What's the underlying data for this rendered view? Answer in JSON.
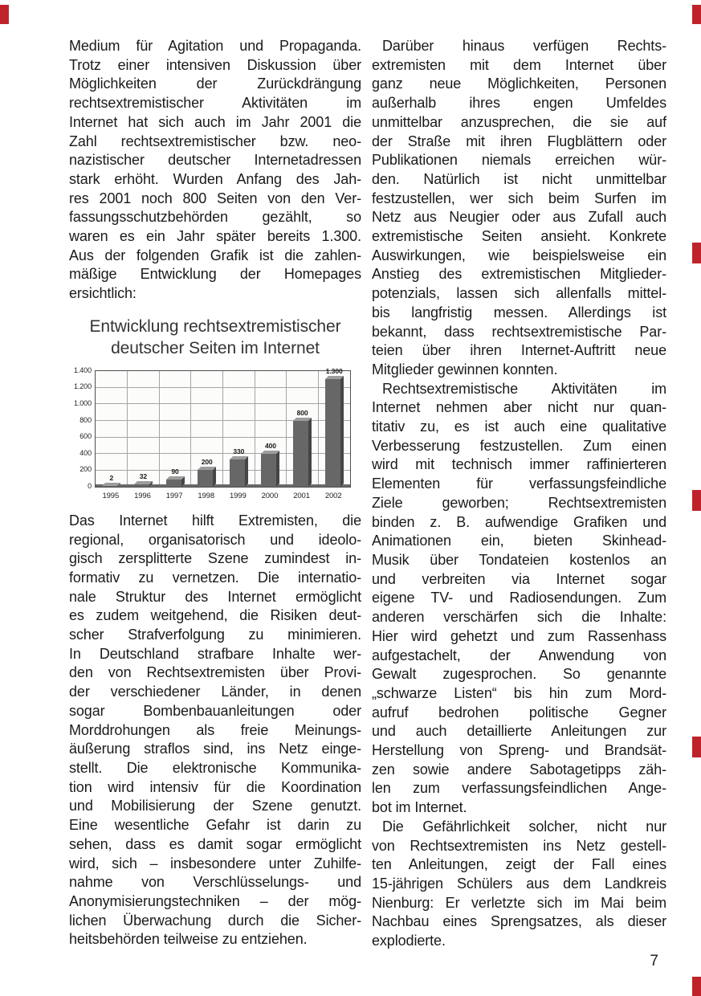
{
  "page": {
    "number": "7"
  },
  "colors": {
    "edge_mark": "#bf232a",
    "text": "#1a1a1a"
  },
  "columns": {
    "left": {
      "para1_lines": [
        "Medium für Agitation und Propaganda.",
        "Trotz einer intensiven Diskussion über",
        "Möglichkeiten der Zurückdrängung",
        "rechtsextremistischer Aktivitäten im",
        "Internet hat sich auch im Jahr 2001 die",
        "Zahl rechtsextremistischer bzw. neo-",
        "nazistischer deutscher Internetadressen",
        "stark erhöht. Wurden Anfang des Jah-",
        "res 2001 noch 800 Seiten von den Ver-",
        "fassungsschutzbehörden gezählt, so",
        "waren es ein Jahr später bereits 1.300.",
        "Aus der folgenden Grafik ist die zahlen-",
        "mäßige Entwicklung der Homepages",
        "ersichtlich:"
      ],
      "para2_lines": [
        "Das Internet hilft Extremisten, die",
        "regional, organisatorisch und ideolo-",
        "gisch zersplitterte Szene zumindest in-",
        "formativ zu vernetzen. Die internatio-",
        "nale Struktur des Internet ermöglicht",
        "es zudem weitgehend, die Risiken deut-",
        "scher Strafverfolgung zu minimieren.",
        "In Deutschland strafbare Inhalte wer-",
        "den von Rechtsextremisten über Provi-",
        "der verschiedener Länder, in denen",
        "sogar Bombenbauanleitungen oder",
        "Morddrohungen als freie Meinungs-",
        "äußerung straflos sind, ins Netz einge-",
        "stellt. Die elektronische Kommunika-",
        "tion wird intensiv für die Koordination",
        "und Mobilisierung der Szene genutzt.",
        "Eine wesentliche Gefahr ist darin zu",
        "sehen, dass es damit sogar ermöglicht",
        "wird, sich – insbesondere unter Zuhilfe-",
        "nahme von Verschlüsselungs- und",
        "Anonymisierungstechniken – der mög-",
        "lichen Überwachung durch die Sicher-",
        "heitsbehörden teilweise zu entziehen."
      ]
    },
    "right": {
      "para1_lines": [
        "Darüber hinaus verfügen Rechts-",
        "extremisten mit dem Internet über",
        "ganz neue Möglichkeiten, Personen",
        "außerhalb ihres engen Umfeldes",
        "unmittelbar anzusprechen, die sie auf",
        "der Straße mit ihren Flugblättern oder",
        "Publikationen niemals erreichen wür-",
        "den. Natürlich ist nicht unmittelbar",
        "festzustellen, wer sich beim Surfen im",
        "Netz aus Neugier oder aus Zufall auch",
        "extremistische Seiten ansieht. Konkrete",
        "Auswirkungen, wie beispielsweise ein",
        "Anstieg des extremistischen Mitglieder-",
        "potenzials, lassen sich allenfalls mittel-",
        "bis langfristig messen. Allerdings ist",
        "bekannt, dass rechtsextremistische Par-",
        "teien über ihren Internet-Auftritt neue",
        "Mitglieder gewinnen konnten."
      ],
      "para2_lines": [
        "Rechtsextremistische Aktivitäten im",
        "Internet nehmen aber nicht nur quan-",
        "titativ zu, es ist auch eine qualitative",
        "Verbesserung festzustellen. Zum einen",
        "wird mit technisch immer raffinierteren",
        "Elementen für verfassungsfeindliche",
        "Ziele geworben; Rechtsextremisten",
        "binden z. B. aufwendige Grafiken und",
        "Animationen ein, bieten Skinhead-",
        "Musik über Tondateien kostenlos an",
        "und verbreiten via Internet sogar",
        "eigene TV- und Radiosendungen. Zum",
        "anderen verschärfen sich die Inhalte:",
        "Hier wird gehetzt und zum Rassenhass",
        "aufgestachelt, der Anwendung von",
        "Gewalt zugesprochen. So genannte",
        "„schwarze Listen“ bis hin zum Mord-",
        "aufruf bedrohen politische Gegner",
        "und auch detaillierte Anleitungen zur",
        "Herstellung von Spreng- und Brandsät-",
        "zen sowie andere Sabotagetipps zäh-",
        "len zum verfassungsfeindlichen Ange-",
        "bot im Internet."
      ],
      "para3_lines": [
        "Die Gefährlichkeit solcher, nicht nur",
        "von Rechtsextremisten ins Netz gestell-",
        "ten Anleitungen, zeigt der Fall eines",
        "15-jährigen Schülers aus dem Landkreis",
        "Nienburg: Er verletzte sich im Mai beim",
        "Nachbau eines Sprengsatzes, als dieser",
        "explodierte."
      ]
    }
  },
  "chart": {
    "title_line1": "Entwicklung rechtsextremistischer",
    "title_line2": "deutscher Seiten im Internet"
  },
  "chart_data": {
    "type": "bar",
    "title": "Entwicklung rechtsextremistischer deutscher Seiten im Internet",
    "categories": [
      "1995",
      "1996",
      "1997",
      "1998",
      "1999",
      "2000",
      "2001",
      "2002"
    ],
    "values": [
      2,
      32,
      90,
      200,
      330,
      400,
      800,
      1300
    ],
    "bar_labels": [
      "2",
      "32",
      "90",
      "200",
      "330",
      "400",
      "800",
      "1.300"
    ],
    "xlabel": "",
    "ylabel": "",
    "ylim": [
      0,
      1400
    ],
    "yticks": [
      0,
      200,
      400,
      600,
      800,
      1000,
      1200,
      1400
    ],
    "ytick_labels": [
      "0",
      "200",
      "400",
      "600",
      "800",
      "1.000",
      "1.200",
      "1.400"
    ],
    "grid": true,
    "legend": false,
    "bar_color": "#676767",
    "bar_top_color": "#9d9d9d",
    "bar_side_color": "#454545"
  }
}
